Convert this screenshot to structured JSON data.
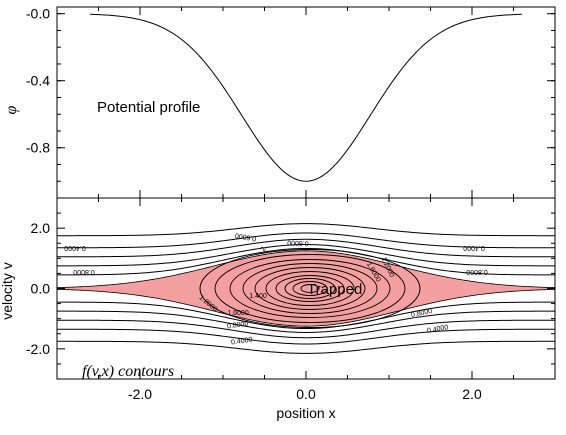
{
  "chart_data": [
    {
      "type": "line",
      "panel": "top",
      "ylabel": "φ",
      "annotation": "Potential profile",
      "xlim": [
        -3.0,
        3.0
      ],
      "ylim": [
        -1.1,
        0.04
      ],
      "yticks": [
        -0.0,
        -0.4,
        -0.8
      ],
      "ytick_labels": [
        "-0.0",
        "-0.4",
        "-0.8"
      ],
      "series": [
        {
          "form": "phi(x) = -exp(-x^2/1.2)",
          "x_range": [
            -2.6,
            2.6
          ],
          "min": {
            "x": 0.0,
            "y": -1.0
          }
        }
      ]
    },
    {
      "type": "contour",
      "panel": "bottom",
      "xlabel": "position x",
      "ylabel": "velocity v",
      "annotation": "f(v,x) contours",
      "trapped_label": "Trapped",
      "xlim": [
        -3.0,
        3.0
      ],
      "ylim": [
        -3.0,
        3.0
      ],
      "xticks": [
        -2.0,
        0.0,
        2.0
      ],
      "xtick_labels": [
        "-2.0",
        "0.0",
        "2.0"
      ],
      "yticks": [
        2.0,
        0.0,
        -2.0
      ],
      "ytick_labels": [
        "2.0",
        "0.0",
        "-2.0"
      ],
      "trapped_fill_color": "#f4a0a0",
      "contour_labels_outside": [
        "0.4000",
        "0.6000",
        "0.8000",
        "0.4000",
        "0.6000",
        "0.8000",
        "0.8000",
        "0.4000"
      ],
      "contour_labels_inside": [
        "1.2000",
        "1.6000",
        "2",
        "1.6000",
        "1.2000",
        "1.400"
      ]
    }
  ]
}
